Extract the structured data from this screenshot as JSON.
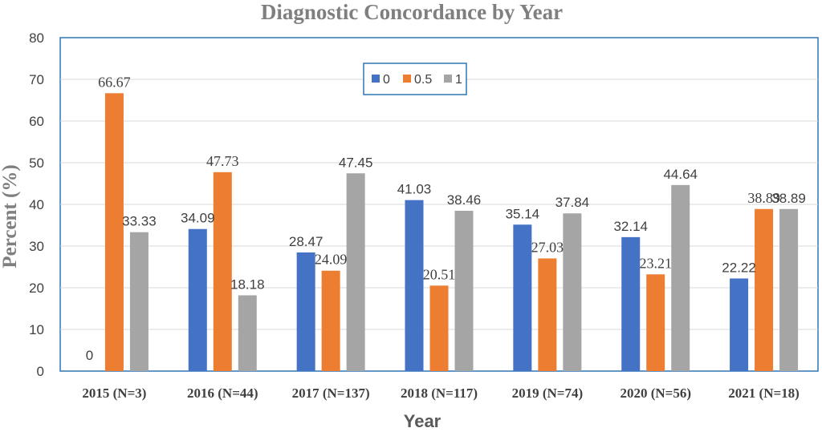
{
  "chart_data": {
    "type": "bar",
    "title": "Diagnostic Concordance by Year",
    "xlabel": "Year",
    "ylabel": "Percent (%)",
    "ylim": [
      0,
      80
    ],
    "yticks": [
      0,
      10,
      20,
      30,
      40,
      50,
      60,
      70,
      80
    ],
    "grid": true,
    "legend_position": "top-center",
    "categories": [
      "2015 (N=3)",
      "2016 (N=44)",
      "2017 (N=137)",
      "2018 (N=117)",
      "2019 (N=74)",
      "2020 (N=56)",
      "2021 (N=18)"
    ],
    "series": [
      {
        "name": "0",
        "color": "#4472c4",
        "values": [
          0,
          34.09,
          28.47,
          41.03,
          35.14,
          32.14,
          22.22
        ],
        "labels": [
          "0",
          "34.09",
          "28.47",
          "41.03",
          "35.14",
          "32.14",
          "22.22"
        ]
      },
      {
        "name": "0.5",
        "color": "#ed7d31",
        "values": [
          66.67,
          47.73,
          24.09,
          20.51,
          27.03,
          23.21,
          38.89
        ],
        "labels": [
          "66.67",
          "47.73",
          "24.09",
          "20.51",
          "27.03",
          "23.21",
          "38.89"
        ]
      },
      {
        "name": "1",
        "color": "#a5a5a5",
        "values": [
          33.33,
          18.18,
          47.45,
          38.46,
          37.84,
          44.64,
          38.89
        ],
        "labels": [
          "33.33",
          "18.18",
          "47.45",
          "38.46",
          "37.84",
          "44.64",
          "38.89"
        ]
      }
    ]
  }
}
